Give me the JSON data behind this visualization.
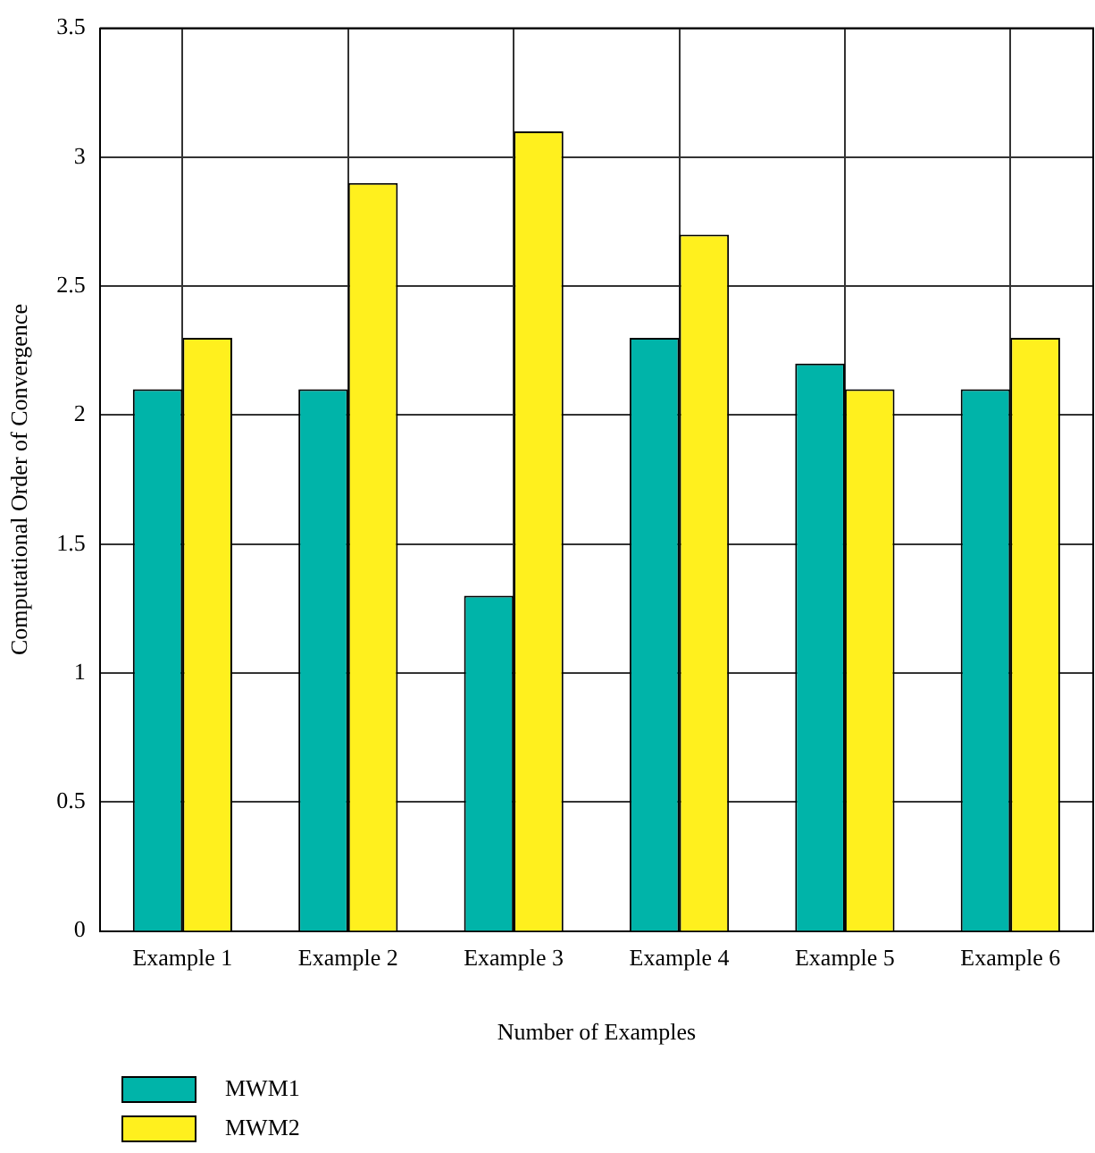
{
  "chart_data": {
    "type": "bar",
    "xlabel": "Number of Examples",
    "ylabel": "Computational Order of Convergence",
    "categories": [
      "Example 1",
      "Example 2",
      "Example 3",
      "Example 4",
      "Example 5",
      "Example 6"
    ],
    "series": [
      {
        "name": "MWM1",
        "color": "#00b4a9",
        "values": [
          2.1,
          2.1,
          1.3,
          2.3,
          2.2,
          2.1
        ]
      },
      {
        "name": "MWM2",
        "color": "#fff01e",
        "values": [
          2.3,
          2.9,
          3.1,
          2.7,
          2.1,
          2.3
        ]
      }
    ],
    "ylim": [
      0,
      3.5
    ],
    "yticks": [
      0,
      0.5,
      1,
      1.5,
      2,
      2.5,
      3,
      3.5
    ],
    "grid": true,
    "legend": "bottom"
  }
}
